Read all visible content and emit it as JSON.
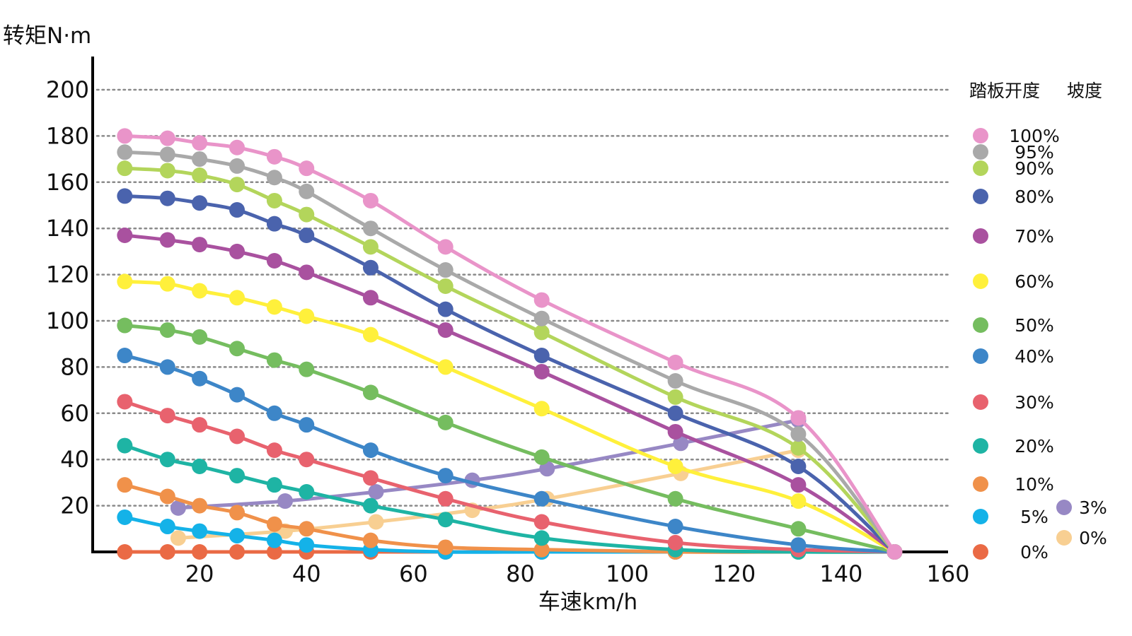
{
  "chart_data": {
    "type": "line",
    "ylabel": "转矩N·m",
    "xlabel": "车速km/h",
    "xlim": [
      0,
      160
    ],
    "ylim": [
      0,
      200
    ],
    "x_ticks": [
      "20",
      "40",
      "60",
      "80",
      "100",
      "120",
      "140",
      "160"
    ],
    "y_ticks": [
      "20",
      "40",
      "60",
      "80",
      "100",
      "120",
      "140",
      "160",
      "180",
      "200"
    ],
    "grid": "horizontal dotted",
    "legend": {
      "pedal_title": "踏板开度",
      "slope_title": "坡度",
      "placement": "right"
    },
    "pedal_series": [
      {
        "name": "100%",
        "color": "#E994C9",
        "x": [
          6,
          14,
          20,
          27,
          34,
          40,
          52,
          66,
          84,
          109,
          132,
          150
        ],
        "y": [
          180,
          179,
          177,
          175,
          171,
          166,
          152,
          132,
          109,
          82,
          58,
          0
        ]
      },
      {
        "name": "95%",
        "color": "#A9A9A9",
        "x": [
          6,
          14,
          20,
          27,
          34,
          40,
          52,
          66,
          84,
          109,
          132,
          150
        ],
        "y": [
          173,
          172,
          170,
          167,
          162,
          156,
          140,
          122,
          101,
          74,
          51,
          0
        ]
      },
      {
        "name": "90%",
        "color": "#B3D55B",
        "x": [
          6,
          14,
          20,
          27,
          34,
          40,
          52,
          66,
          84,
          109,
          132,
          150
        ],
        "y": [
          166,
          165,
          163,
          159,
          152,
          146,
          132,
          115,
          95,
          67,
          45,
          0
        ]
      },
      {
        "name": "80%",
        "color": "#4A63AD",
        "x": [
          6,
          14,
          20,
          27,
          34,
          40,
          52,
          66,
          84,
          109,
          132,
          150
        ],
        "y": [
          154,
          153,
          151,
          148,
          142,
          137,
          123,
          105,
          85,
          60,
          37,
          0
        ]
      },
      {
        "name": "70%",
        "color": "#A9519F",
        "x": [
          6,
          14,
          20,
          27,
          34,
          40,
          52,
          66,
          84,
          109,
          132,
          150
        ],
        "y": [
          137,
          135,
          133,
          130,
          126,
          121,
          110,
          96,
          78,
          52,
          29,
          0
        ]
      },
      {
        "name": "60%",
        "color": "#FFF03B",
        "x": [
          6,
          14,
          20,
          27,
          34,
          40,
          52,
          66,
          84,
          109,
          132,
          150
        ],
        "y": [
          117,
          116,
          113,
          110,
          106,
          102,
          94,
          80,
          62,
          37,
          22,
          0
        ]
      },
      {
        "name": "50%",
        "color": "#75BD5F",
        "x": [
          6,
          14,
          20,
          27,
          34,
          40,
          52,
          66,
          84,
          109,
          132,
          150
        ],
        "y": [
          98,
          96,
          93,
          88,
          83,
          79,
          69,
          56,
          41,
          23,
          10,
          0
        ]
      },
      {
        "name": "40%",
        "color": "#3D86C8",
        "x": [
          6,
          14,
          20,
          27,
          34,
          40,
          52,
          66,
          84,
          109,
          132,
          150
        ],
        "y": [
          85,
          80,
          75,
          68,
          60,
          55,
          44,
          33,
          23,
          11,
          3,
          0
        ]
      },
      {
        "name": "30%",
        "color": "#E8626E",
        "x": [
          6,
          14,
          20,
          27,
          34,
          40,
          52,
          66,
          84,
          109,
          132,
          150
        ],
        "y": [
          65,
          59,
          55,
          50,
          44,
          40,
          32,
          23,
          13,
          4,
          1,
          0
        ]
      },
      {
        "name": "20%",
        "color": "#1EB4A4",
        "x": [
          6,
          14,
          20,
          27,
          34,
          40,
          52,
          66,
          84,
          109,
          132,
          150
        ],
        "y": [
          46,
          40,
          37,
          33,
          29,
          26,
          20,
          14,
          6,
          1,
          0,
          0
        ]
      },
      {
        "name": "10%",
        "color": "#F0914A",
        "x": [
          6,
          14,
          20,
          27,
          34,
          40,
          52,
          66,
          84,
          109,
          132,
          150
        ],
        "y": [
          29,
          24,
          20,
          17,
          12,
          10,
          5,
          2,
          1,
          0,
          0,
          0
        ]
      },
      {
        "name": "5%",
        "color": "#14B2E8",
        "x": [
          6,
          14,
          20,
          27,
          34,
          40,
          52,
          66,
          84,
          109,
          132,
          150
        ],
        "y": [
          15,
          11,
          9,
          7,
          5,
          3,
          1,
          0,
          0,
          0,
          0,
          0
        ]
      },
      {
        "name": "0%",
        "color": "#EA6A45",
        "x": [
          6,
          14,
          20,
          27,
          34,
          40,
          52,
          66,
          84,
          109,
          132,
          150
        ],
        "y": [
          0,
          0,
          0,
          0,
          0,
          0,
          0,
          0,
          0,
          0,
          0,
          0
        ]
      }
    ],
    "slope_series": [
      {
        "name": "3%",
        "color": "#9788C4",
        "x": [
          16,
          36,
          53,
          71,
          85,
          110,
          132
        ],
        "y": [
          19,
          22,
          26,
          31,
          36,
          47,
          57
        ]
      },
      {
        "name": "0%",
        "color": "#F8CF92",
        "x": [
          16,
          36,
          53,
          71,
          85,
          110,
          132
        ],
        "y": [
          6,
          9,
          13,
          18,
          23,
          34,
          44
        ]
      }
    ]
  }
}
